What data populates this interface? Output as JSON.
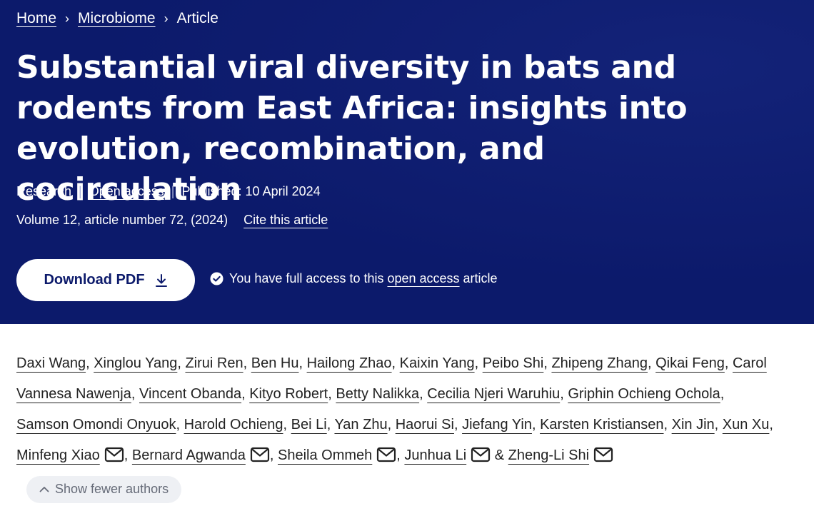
{
  "breadcrumb": {
    "home": "Home",
    "section": "Microbiome",
    "current": "Article"
  },
  "article": {
    "title": "Substantial viral diversity in bats and rodents from East Africa: insights into evolution, recombination, and cocirculation",
    "type": "Research",
    "access_type": "Open access",
    "published": "Published: 10 April 2024",
    "volume": "Volume 12, article number 72, (2024)",
    "cite_label": "Cite this article"
  },
  "download": {
    "label": "Download PDF",
    "icon": "download-icon"
  },
  "access_note": {
    "icon": "check-circle-icon",
    "prefix": "You have full access to this",
    "link": "open access",
    "suffix": "article"
  },
  "authors": [
    {
      "name": "Daxi Wang",
      "mail": false
    },
    {
      "name": "Xinglou Yang",
      "mail": false
    },
    {
      "name": "Zirui Ren",
      "mail": false
    },
    {
      "name": "Ben Hu",
      "mail": false
    },
    {
      "name": "Hailong Zhao",
      "mail": false
    },
    {
      "name": "Kaixin Yang",
      "mail": false
    },
    {
      "name": "Peibo Shi",
      "mail": false
    },
    {
      "name": "Zhipeng Zhang",
      "mail": false
    },
    {
      "name": "Qikai Feng",
      "mail": false
    },
    {
      "name": "Carol Vannesa Nawenja",
      "mail": false
    },
    {
      "name": "Vincent Obanda",
      "mail": false
    },
    {
      "name": "Kityo Robert",
      "mail": false
    },
    {
      "name": "Betty Nalikka",
      "mail": false
    },
    {
      "name": "Cecilia Njeri Waruhiu",
      "mail": false
    },
    {
      "name": "Griphin Ochieng Ochola",
      "mail": false
    },
    {
      "name": "Samson Omondi Onyuok",
      "mail": false
    },
    {
      "name": "Harold Ochieng",
      "mail": false
    },
    {
      "name": "Bei Li",
      "mail": false
    },
    {
      "name": "Yan Zhu",
      "mail": false
    },
    {
      "name": "Haorui Si",
      "mail": false
    },
    {
      "name": "Jiefang Yin",
      "mail": false
    },
    {
      "name": "Karsten Kristiansen",
      "mail": false
    },
    {
      "name": "Xin Jin",
      "mail": false
    },
    {
      "name": "Xun Xu",
      "mail": false
    },
    {
      "name": "Minfeng Xiao",
      "mail": true
    },
    {
      "name": "Bernard Agwanda",
      "mail": true
    },
    {
      "name": "Sheila Ommeh",
      "mail": true
    },
    {
      "name": "Junhua Li",
      "mail": true
    },
    {
      "name": "Zheng-Li Shi",
      "mail": true
    }
  ],
  "authors_last_joiner": "&",
  "show_fewer": {
    "label": "Show fewer authors",
    "icon": "chevron-up-icon"
  },
  "colors": {
    "hero_bg": "#0c1a6b",
    "text": "#222222",
    "pill_bg": "#eef0f4"
  }
}
